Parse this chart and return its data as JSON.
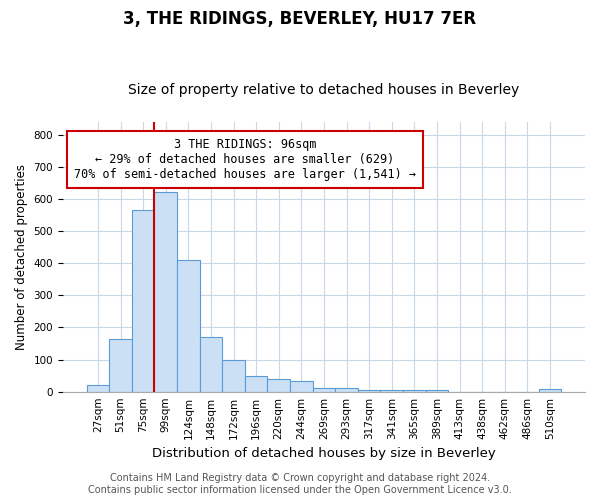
{
  "title": "3, THE RIDINGS, BEVERLEY, HU17 7ER",
  "subtitle": "Size of property relative to detached houses in Beverley",
  "xlabel": "Distribution of detached houses by size in Beverley",
  "ylabel": "Number of detached properties",
  "bar_labels": [
    "27sqm",
    "51sqm",
    "75sqm",
    "99sqm",
    "124sqm",
    "148sqm",
    "172sqm",
    "196sqm",
    "220sqm",
    "244sqm",
    "269sqm",
    "293sqm",
    "317sqm",
    "341sqm",
    "365sqm",
    "389sqm",
    "413sqm",
    "438sqm",
    "462sqm",
    "486sqm",
    "510sqm"
  ],
  "bar_values": [
    20,
    165,
    565,
    620,
    410,
    170,
    100,
    50,
    40,
    33,
    10,
    13,
    5,
    5,
    5,
    5,
    0,
    0,
    0,
    0,
    8
  ],
  "bar_color": "#cce0f5",
  "bar_edge_color": "#5b9bd5",
  "vline_color": "#cc0000",
  "vline_position": 3,
  "annotation_text": "3 THE RIDINGS: 96sqm\n← 29% of detached houses are smaller (629)\n70% of semi-detached houses are larger (1,541) →",
  "annotation_box_color": "#ffffff",
  "annotation_box_edge": "#cc0000",
  "ylim": [
    0,
    840
  ],
  "yticks": [
    0,
    100,
    200,
    300,
    400,
    500,
    600,
    700,
    800
  ],
  "footer_text": "Contains HM Land Registry data © Crown copyright and database right 2024.\nContains public sector information licensed under the Open Government Licence v3.0.",
  "background_color": "#ffffff",
  "grid_color": "#c8d8e8",
  "title_fontsize": 12,
  "subtitle_fontsize": 10,
  "xlabel_fontsize": 9.5,
  "ylabel_fontsize": 8.5,
  "tick_fontsize": 7.5,
  "annotation_fontsize": 8.5,
  "footer_fontsize": 7
}
